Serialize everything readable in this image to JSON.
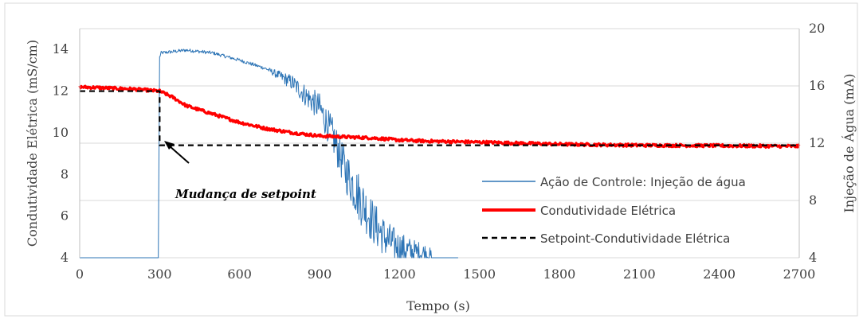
{
  "chart_data": {
    "type": "line",
    "xlabel": "Tempo (s)",
    "ylabel_left": "Condutividade Elétrica (mS/cm)",
    "ylabel_right": "Injeção de Água (mA)",
    "xlim": [
      0,
      2700
    ],
    "ylim_left": [
      4,
      15
    ],
    "ylim_right": [
      4,
      20
    ],
    "x_ticks": [
      0,
      300,
      600,
      900,
      1200,
      1500,
      1800,
      2100,
      2400,
      2700
    ],
    "y_ticks_left": [
      4,
      6,
      8,
      10,
      12,
      14
    ],
    "y_ticks_right": [
      4,
      8,
      12,
      16,
      20
    ],
    "grid": "horizontal",
    "legend_position": "right",
    "annotation": {
      "text": "Mudança de setpoint",
      "arrow_to": {
        "x": 305,
        "y": 9.9
      }
    },
    "series": [
      {
        "name": "Ação de Controle: Injeção de água",
        "axis": "right",
        "color": "#2E75B6",
        "noisy": true,
        "x": [
          0,
          295,
          300,
          305,
          400,
          500,
          600,
          700,
          800,
          850,
          900,
          950,
          1000,
          1050,
          1100,
          1150,
          1200,
          1250,
          1300,
          1320,
          1420
        ],
        "y": [
          4,
          4,
          18.0,
          18.3,
          18.5,
          18.3,
          17.8,
          17.2,
          16.2,
          15.3,
          14.5,
          12.5,
          10.0,
          8.2,
          6.5,
          5.3,
          4.7,
          4.4,
          4.3,
          4.0,
          4.0
        ]
      },
      {
        "name": "Condutividade Elétrica",
        "axis": "left",
        "color": "#FF0000",
        "noisy": true,
        "x": [
          0,
          100,
          200,
          300,
          350,
          400,
          500,
          600,
          700,
          800,
          900,
          1000,
          1100,
          1200,
          1300,
          1500,
          1800,
          2100,
          2400,
          2700
        ],
        "y": [
          12.2,
          12.15,
          12.1,
          12.0,
          11.7,
          11.3,
          10.9,
          10.5,
          10.2,
          10.0,
          9.85,
          9.8,
          9.75,
          9.65,
          9.6,
          9.55,
          9.45,
          9.4,
          9.38,
          9.35
        ]
      },
      {
        "name": "Setpoint-Condutividade Elétrica",
        "axis": "left",
        "color": "#000000",
        "dashed": true,
        "x": [
          0,
          300,
          300,
          2700
        ],
        "y": [
          12.0,
          12.0,
          9.4,
          9.4
        ]
      }
    ]
  }
}
